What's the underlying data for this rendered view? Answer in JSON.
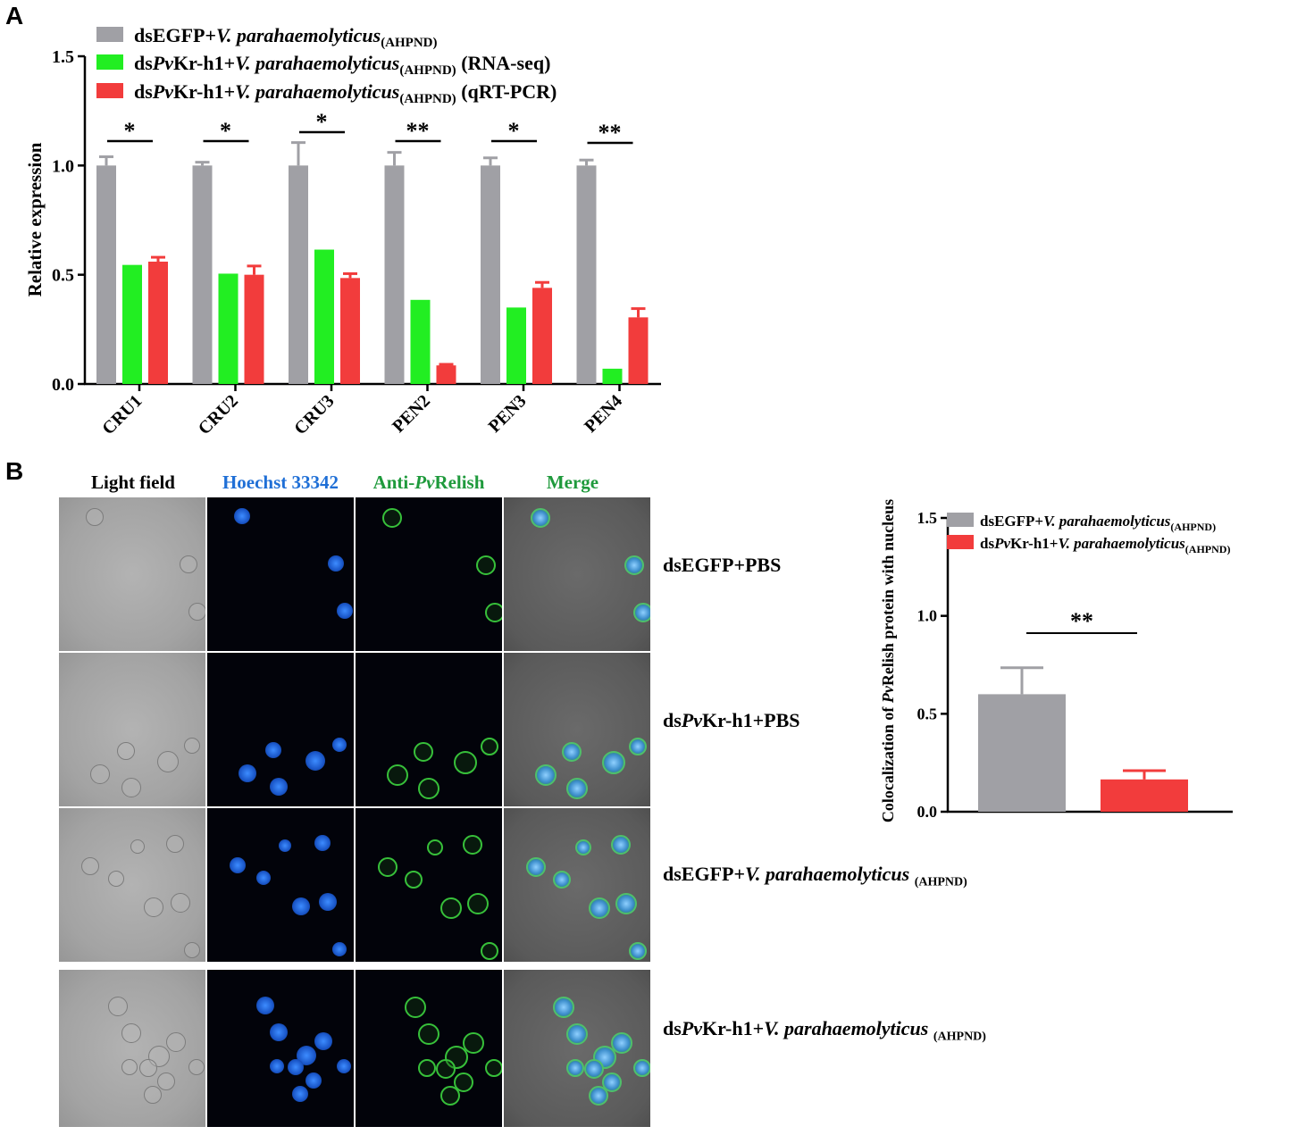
{
  "panel_a": {
    "letter": "A",
    "chart_data": {
      "type": "bar",
      "categories": [
        "CRU1",
        "CRU2",
        "CRU3",
        "PEN2",
        "PEN3",
        "PEN4"
      ],
      "ylabel": "Relative expression",
      "ylim": [
        0,
        1.5
      ],
      "yticks": [
        "0.0",
        "0.5",
        "1.0",
        "1.5"
      ],
      "series": [
        {
          "name": "dsEGFP+V. parahaemolyticus(AHPND)",
          "legend_main": "dsEGFP+",
          "legend_italic": "V. parahaemolyticus",
          "legend_sub": "(AHPND)",
          "legend_suffix": "",
          "color": "#a0a0a5",
          "values": [
            1.0,
            1.0,
            1.0,
            1.0,
            1.0,
            1.0
          ],
          "errors": [
            0.04,
            0.015,
            0.105,
            0.06,
            0.035,
            0.025
          ]
        },
        {
          "name": "dsPvKr-h1+V. parahaemolyticus(AHPND) (RNA-seq)",
          "legend_main": "ds",
          "legend_italic_pv": "Pv",
          "legend_main2": "Kr-h1+",
          "legend_italic": "V. parahaemolyticus",
          "legend_sub": "(AHPND)",
          "legend_suffix": " (RNA-seq)",
          "color": "#22ee22",
          "values": [
            0.545,
            0.505,
            0.615,
            0.385,
            0.35,
            0.07
          ],
          "errors": [
            0,
            0,
            0,
            0,
            0,
            0
          ]
        },
        {
          "name": "dsPvKr-h1+V. parahaemolyticus(AHPND) (qRT-PCR)",
          "legend_main": "ds",
          "legend_italic_pv": "Pv",
          "legend_main2": "Kr-h1+",
          "legend_italic": "V. parahaemolyticus",
          "legend_sub": "(AHPND)",
          "legend_suffix": " (qRT-PCR)",
          "color": "#f23c3c",
          "values": [
            0.56,
            0.5,
            0.485,
            0.085,
            0.44,
            0.305
          ],
          "errors": [
            0.02,
            0.04,
            0.02,
            0.005,
            0.025,
            0.04
          ]
        }
      ],
      "significance": [
        "*",
        "*",
        "*",
        "**",
        "*",
        "**"
      ],
      "legend_position": "top-left"
    }
  },
  "panel_b": {
    "letter": "B",
    "column_headers": {
      "light": "Light field",
      "hoechst": "Hoechst 33342",
      "anti_pre": "Anti-",
      "anti_pv": "Pv",
      "anti_post": "Relish",
      "merge": "Merge"
    },
    "header_colors": {
      "light": "#000000",
      "hoechst": "#1f6fd6",
      "anti": "#1f9a3c",
      "merge": "#1f9a3c"
    },
    "rows": [
      {
        "pre": "dsEGFP+PBS",
        "pv": "",
        "post": "",
        "italic": "",
        "sub": ""
      },
      {
        "pre": "ds",
        "pv": "Pv",
        "post": "Kr-h1+PBS",
        "italic": "",
        "sub": ""
      },
      {
        "pre": "dsEGFP+",
        "pv": "",
        "post": "",
        "italic": "V. parahaemolyticus ",
        "sub": "(AHPND)"
      },
      {
        "pre": "ds",
        "pv": "Pv",
        "post": "Kr-h1+",
        "italic": "V. parahaemolyticus ",
        "sub": "(AHPND)"
      }
    ],
    "chart_data": {
      "type": "bar",
      "categories": [
        "dsEGFP+V. parahaemolyticus(AHPND)",
        "dsPvKr-h1+V. parahaemolyticus(AHPND)"
      ],
      "ylabel_pre": "Colocalization of ",
      "ylabel_pv": "Pv",
      "ylabel_post": "Relish protein with nucleus",
      "ylim": [
        0,
        1.5
      ],
      "yticks": [
        "0.0",
        "0.5",
        "1.0",
        "1.5"
      ],
      "series": [
        {
          "name": "dsEGFP+V. parahaemolyticus(AHPND)",
          "legend_main": "dsEGFP+",
          "legend_pv": "",
          "legend_main2": "",
          "legend_italic": "V. parahaemolyticus",
          "legend_sub": "(AHPND)",
          "color": "#a0a0a5",
          "value": 0.6,
          "error": 0.135
        },
        {
          "name": "dsPvKr-h1+V. parahaemolyticus(AHPND)",
          "legend_main": "ds",
          "legend_pv": "Pv",
          "legend_main2": "Kr-h1+",
          "legend_italic": "V. parahaemolyticus",
          "legend_sub": "(AHPND)",
          "color": "#f23c3c",
          "value": 0.165,
          "error": 0.045
        }
      ],
      "significance": "**",
      "legend_position": "top-right"
    }
  }
}
